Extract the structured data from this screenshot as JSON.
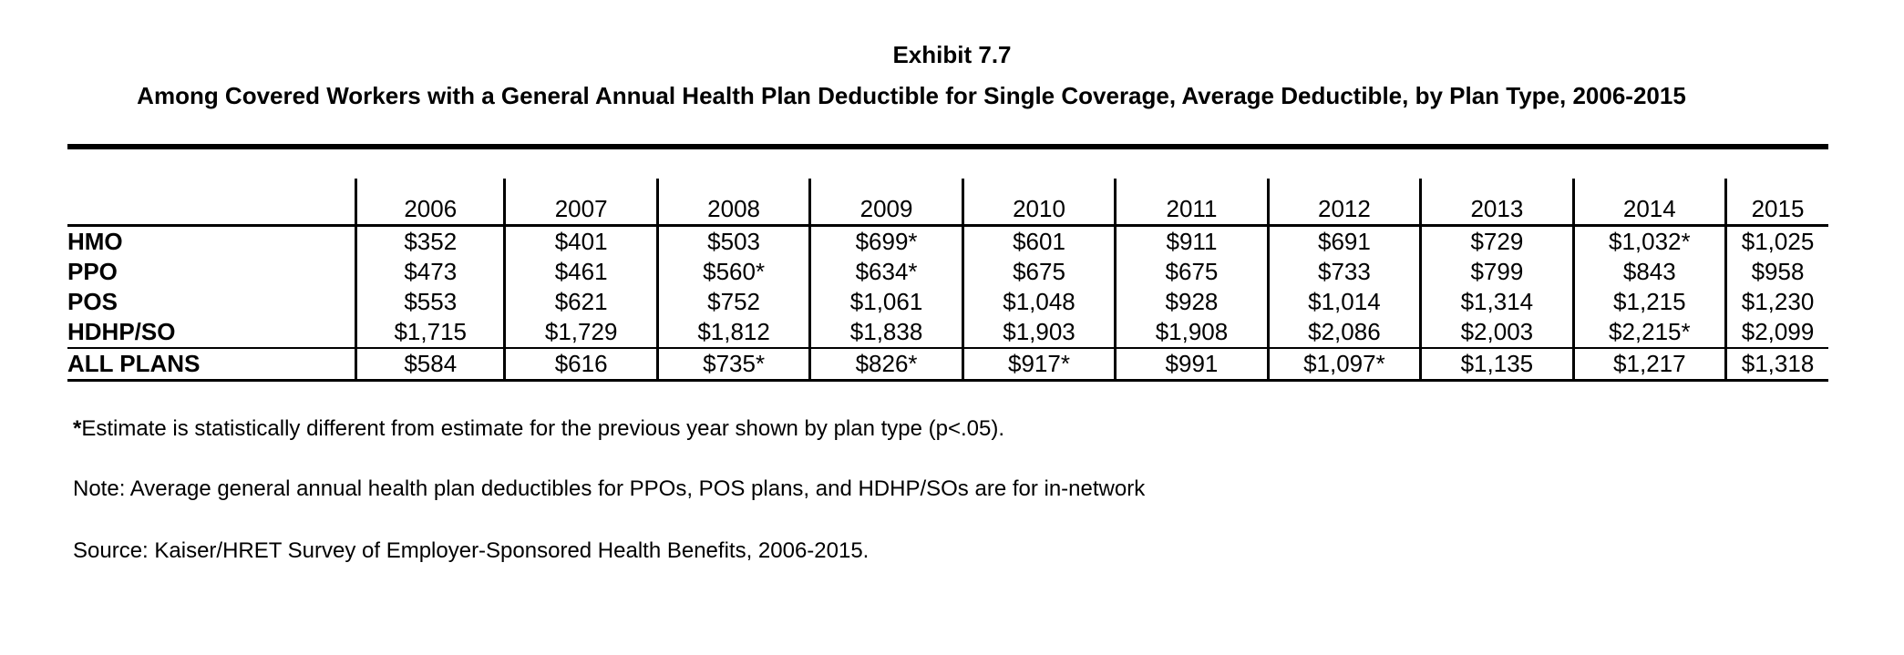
{
  "chart_data": {
    "type": "table",
    "exhibit_label": "Exhibit 7.7",
    "title": "Among Covered Workers with a General Annual Health Plan Deductible for Single Coverage, Average Deductible, by Plan Type, 2006-2015",
    "columns": [
      "2006",
      "2007",
      "2008",
      "2009",
      "2010",
      "2011",
      "2012",
      "2013",
      "2014",
      "2015"
    ],
    "rows": [
      {
        "label": "HMO",
        "values": [
          "$352",
          "$401",
          "$503",
          "$699*",
          "$601",
          "$911",
          "$691",
          "$729",
          "$1,032*",
          "$1,025"
        ]
      },
      {
        "label": "PPO",
        "values": [
          "$473",
          "$461",
          "$560*",
          "$634*",
          "$675",
          "$675",
          "$733",
          "$799",
          "$843",
          "$958"
        ]
      },
      {
        "label": "POS",
        "values": [
          "$553",
          "$621",
          "$752",
          "$1,061",
          "$1,048",
          "$928",
          "$1,014",
          "$1,314",
          "$1,215",
          "$1,230"
        ]
      },
      {
        "label": "HDHP/SO",
        "values": [
          "$1,715",
          "$1,729",
          "$1,812",
          "$1,838",
          "$1,903",
          "$1,908",
          "$2,086",
          "$2,003",
          "$2,215*",
          "$2,099"
        ]
      },
      {
        "label": "ALL PLANS",
        "values": [
          "$584",
          "$616",
          "$735*",
          "$826*",
          "$917*",
          "$991",
          "$1,097*",
          "$1,135",
          "$1,217",
          "$1,318"
        ]
      }
    ],
    "footnotes": {
      "asterisk_mark": "*",
      "asterisk_text": "Estimate is statistically different from estimate for the previous year shown by plan type (p<.05).",
      "note": "Note: Average general annual health plan deductibles for PPOs, POS plans, and HDHP/SOs are for in-network",
      "source": "Source: Kaiser/HRET Survey of Employer-Sponsored Health Benefits, 2006-2015."
    }
  }
}
